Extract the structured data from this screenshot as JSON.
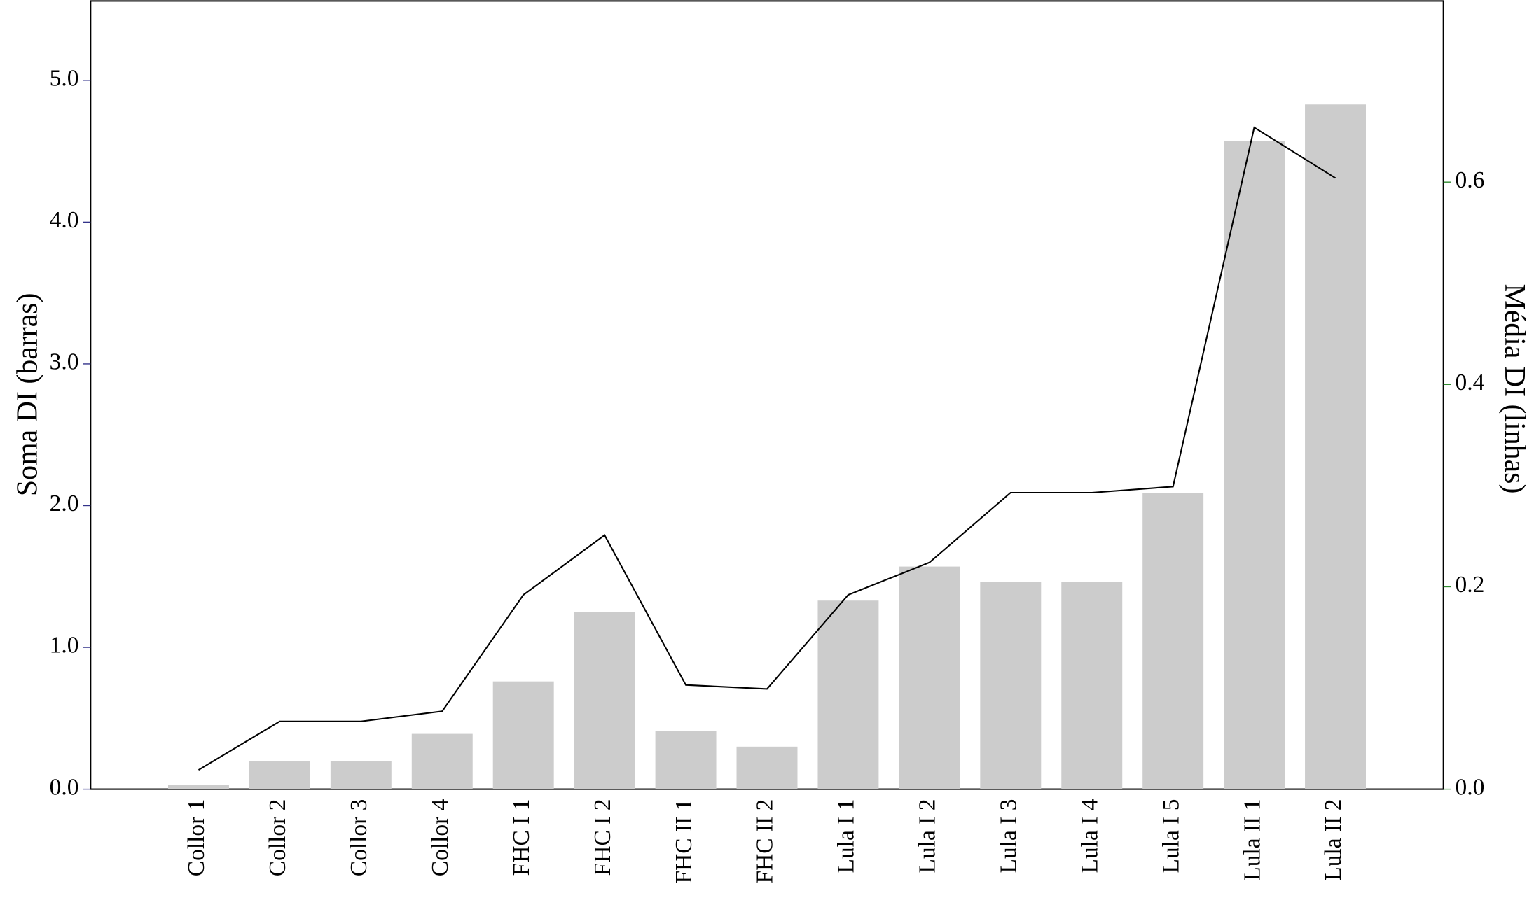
{
  "chart_data": {
    "type": "bar-line",
    "y_label": "Soma DI (barras)",
    "y2_label": "Média DI (linhas)",
    "categories": [
      "Collor 1",
      "Collor 2",
      "Collor 3",
      "Collor 4",
      "FHC I 1",
      "FHC I 2",
      "FHC II 1",
      "FHC II 2",
      "Lula I 1",
      "Lula I 2",
      "Lula I 3",
      "Lula I 4",
      "Lula I 5",
      "Lula II 1",
      "Lula II 2"
    ],
    "series": [
      {
        "type": "bar",
        "color": "#cccccc",
        "values": [
          0.03,
          0.2,
          0.2,
          0.39,
          0.76,
          1.25,
          0.41,
          0.3,
          1.33,
          1.57,
          1.46,
          1.46,
          2.09,
          4.57,
          4.83
        ]
      },
      {
        "type": "line",
        "axis": "y2",
        "color": "#000000",
        "values": [
          0.019,
          0.067,
          0.067,
          0.077,
          0.192,
          0.251,
          0.103,
          0.099,
          0.192,
          0.224,
          0.293,
          0.293,
          0.299,
          0.654,
          0.604
        ]
      }
    ],
    "ylim": [
      0,
      5.56
    ],
    "yticks": [
      {
        "value": 0,
        "label": "0.0"
      },
      {
        "value": 1,
        "label": "1.0"
      },
      {
        "value": 2,
        "label": "2.0"
      },
      {
        "value": 3,
        "label": "3.0"
      },
      {
        "value": 4,
        "label": "4.0"
      },
      {
        "value": 5,
        "label": "5.0"
      }
    ],
    "y2lim": [
      0,
      0.779
    ],
    "y2ticks": [
      {
        "value": 0,
        "label": "0.0"
      },
      0.2,
      0.4,
      0.6
    ],
    "grid": false
  }
}
